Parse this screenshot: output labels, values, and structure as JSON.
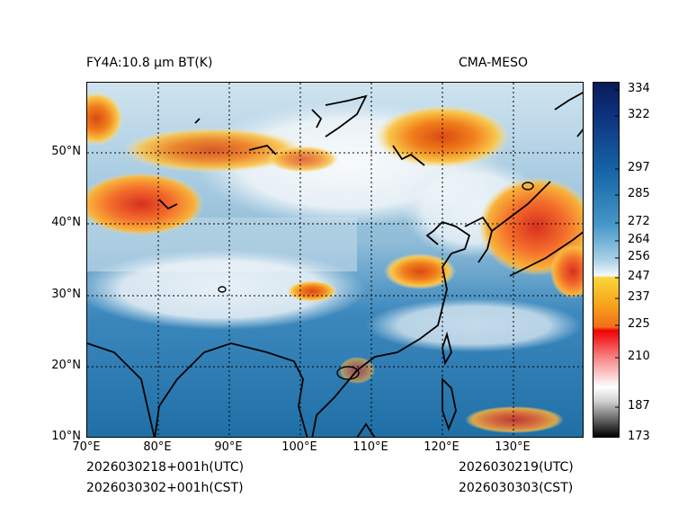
{
  "header": {
    "left_title": "FY4A:10.8 µm BT(K)",
    "right_title": "CMA-MESO"
  },
  "map": {
    "lat_labels": [
      "50°N",
      "40°N",
      "30°N",
      "20°N",
      "10°N"
    ],
    "lon_labels": [
      "70°E",
      "80°E",
      "90°E",
      "100°E",
      "110°E",
      "120°E",
      "130°E"
    ]
  },
  "colorbar": {
    "ticks": [
      "334",
      "322",
      "297",
      "285",
      "272",
      "264",
      "256",
      "247",
      "237",
      "225",
      "210",
      "187",
      "173"
    ]
  },
  "footer": {
    "left_utc": "2026030218+001h(UTC)",
    "left_cst": "2026030302+001h(CST)",
    "right_utc": "2026030219(UTC)",
    "right_cst": "2026030303(CST)"
  }
}
